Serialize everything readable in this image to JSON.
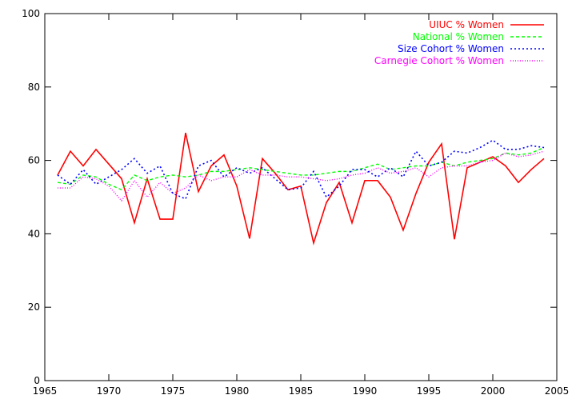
{
  "chart_data": {
    "type": "line",
    "title": "",
    "xlabel": "",
    "ylabel": "",
    "xlim": [
      1965,
      2005
    ],
    "ylim": [
      0,
      100
    ],
    "xticks": [
      1965,
      1970,
      1975,
      1980,
      1985,
      1990,
      1995,
      2000,
      2005
    ],
    "yticks": [
      0,
      20,
      40,
      60,
      80,
      100
    ],
    "grid": false,
    "legend_position": "top-right",
    "series": [
      {
        "name": "UIUC % Women",
        "color": "#ff0000",
        "dash": "solid",
        "x": [
          1966,
          1967,
          1968,
          1969,
          1970,
          1971,
          1972,
          1973,
          1974,
          1975,
          1976,
          1977,
          1978,
          1979,
          1980,
          1981,
          1982,
          1983,
          1984,
          1985,
          1986,
          1987,
          1988,
          1989,
          1990,
          1991,
          1992,
          1993,
          1994,
          1995,
          1996,
          1997,
          1998,
          1999,
          2000,
          2001,
          2002,
          2003,
          2004
        ],
        "values": [
          56,
          62.5,
          58.5,
          63,
          59,
          55,
          43,
          55,
          44,
          44,
          67.5,
          51.5,
          58.5,
          61.5,
          53,
          38.7,
          60.5,
          56.5,
          52,
          53,
          37.5,
          48.5,
          54,
          43,
          54.5,
          54.5,
          50,
          41,
          51,
          59.5,
          64.5,
          38.5,
          58,
          59.5,
          61,
          58.5,
          54,
          57.5,
          60.5
        ]
      },
      {
        "name": "National % Women",
        "color": "#00ff00",
        "dash": "dashed",
        "x": [
          1966,
          1967,
          1968,
          1969,
          1970,
          1971,
          1972,
          1973,
          1974,
          1975,
          1976,
          1977,
          1978,
          1979,
          1980,
          1981,
          1982,
          1983,
          1984,
          1985,
          1986,
          1987,
          1988,
          1989,
          1990,
          1991,
          1992,
          1993,
          1994,
          1995,
          1996,
          1997,
          1998,
          1999,
          2000,
          2001,
          2002,
          2003,
          2004
        ],
        "values": [
          54,
          53.5,
          56,
          55.5,
          53.5,
          52,
          56,
          54.5,
          55.5,
          56,
          55.5,
          56,
          57,
          57,
          57.5,
          58,
          57.5,
          57,
          56.5,
          56,
          56,
          56.5,
          57,
          57,
          58,
          59,
          57.5,
          58,
          58.5,
          58.5,
          59.5,
          58.5,
          59.5,
          60,
          60.5,
          62,
          61.5,
          62,
          63.5
        ]
      },
      {
        "name": "Size Cohort % Women",
        "color": "#0000ff",
        "dash": "dotted",
        "x": [
          1966,
          1967,
          1968,
          1969,
          1970,
          1971,
          1972,
          1973,
          1974,
          1975,
          1976,
          1977,
          1978,
          1979,
          1980,
          1981,
          1982,
          1983,
          1984,
          1985,
          1986,
          1987,
          1988,
          1989,
          1990,
          1991,
          1992,
          1993,
          1994,
          1995,
          1996,
          1997,
          1998,
          1999,
          2000,
          2001,
          2002,
          2003,
          2004
        ],
        "values": [
          56,
          53.5,
          57.5,
          53.5,
          55.5,
          57.5,
          60.5,
          56.5,
          58.5,
          51,
          49.5,
          58.5,
          60,
          55.5,
          58,
          56.5,
          58,
          55,
          52,
          52.5,
          57,
          50,
          53,
          57.5,
          57.5,
          55.5,
          58,
          55.5,
          62.5,
          58.5,
          59.5,
          62.5,
          62,
          63.5,
          65.5,
          63,
          63,
          64,
          63.5
        ]
      },
      {
        "name": "Carnegie Cohort % Women",
        "color": "#ff00ff",
        "dash": "finedot",
        "x": [
          1966,
          1967,
          1968,
          1969,
          1970,
          1971,
          1972,
          1973,
          1974,
          1975,
          1976,
          1977,
          1978,
          1979,
          1980,
          1981,
          1982,
          1983,
          1984,
          1985,
          1986,
          1987,
          1988,
          1989,
          1990,
          1991,
          1992,
          1993,
          1994,
          1995,
          1996,
          1997,
          1998,
          1999,
          2000,
          2001,
          2002,
          2003,
          2004
        ],
        "values": [
          52.5,
          52.5,
          55.5,
          55,
          53,
          49,
          54.5,
          50,
          54,
          51,
          52.5,
          56,
          54.5,
          55.5,
          55.5,
          57.5,
          56,
          56,
          55.5,
          55.5,
          55,
          54.5,
          55,
          56,
          56.5,
          58,
          56.5,
          57,
          58,
          55.5,
          58,
          58.5,
          58.5,
          59.5,
          60,
          62,
          61,
          61.5,
          62.5
        ]
      }
    ]
  }
}
